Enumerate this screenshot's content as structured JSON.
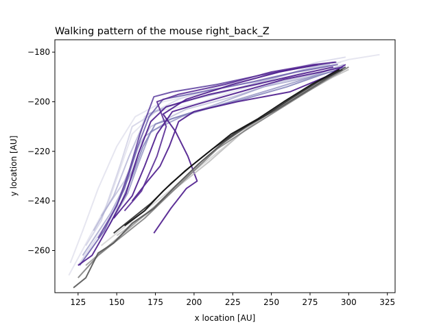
{
  "chart_data": {
    "type": "line",
    "title": "Walking pattern of the mouse right_back_Z",
    "xlabel": "x location [AU]",
    "ylabel": "y location [AU]",
    "xlim": [
      110,
      330
    ],
    "ylim": [
      -277,
      -175
    ],
    "xticks": [
      125,
      150,
      175,
      200,
      225,
      250,
      275,
      300,
      325
    ],
    "yticks": [
      -260,
      -240,
      -220,
      -200,
      -180
    ],
    "grid": false,
    "legend": "none",
    "series": [
      {
        "color": "#dcdcea",
        "opacity": 0.7,
        "points": [
          [
            120,
            -265
          ],
          [
            128,
            -252
          ],
          [
            138,
            -235
          ],
          [
            150,
            -218
          ],
          [
            162,
            -206
          ],
          [
            180,
            -200
          ],
          [
            210,
            -196
          ],
          [
            250,
            -190
          ],
          [
            285,
            -186
          ],
          [
            295,
            -184
          ]
        ]
      },
      {
        "color": "#dcdcea",
        "opacity": 0.7,
        "points": [
          [
            119,
            -270
          ],
          [
            145,
            -240
          ],
          [
            160,
            -213
          ],
          [
            175,
            -204
          ],
          [
            200,
            -201
          ],
          [
            230,
            -195
          ],
          [
            260,
            -190
          ],
          [
            300,
            -183
          ],
          [
            320,
            -181
          ]
        ]
      },
      {
        "color": "#c8c8e0",
        "opacity": 0.7,
        "points": [
          [
            130,
            -258
          ],
          [
            140,
            -248
          ],
          [
            152,
            -226
          ],
          [
            160,
            -210
          ],
          [
            178,
            -203
          ],
          [
            205,
            -198
          ],
          [
            240,
            -193
          ],
          [
            270,
            -187
          ],
          [
            290,
            -184
          ]
        ]
      },
      {
        "color": "#d0d0e6",
        "opacity": 0.7,
        "points": [
          [
            125,
            -266
          ],
          [
            150,
            -243
          ],
          [
            162,
            -222
          ],
          [
            168,
            -206
          ],
          [
            190,
            -199
          ],
          [
            215,
            -194
          ],
          [
            250,
            -189
          ],
          [
            280,
            -184
          ],
          [
            298,
            -182
          ]
        ]
      },
      {
        "color": "#b4b4d4",
        "opacity": 0.7,
        "points": [
          [
            140,
            -246
          ],
          [
            155,
            -232
          ],
          [
            165,
            -217
          ],
          [
            172,
            -210
          ],
          [
            195,
            -203
          ],
          [
            225,
            -198
          ],
          [
            255,
            -192
          ],
          [
            278,
            -189
          ],
          [
            292,
            -186
          ]
        ]
      },
      {
        "color": "#a8a8ce",
        "opacity": 0.7,
        "points": [
          [
            135,
            -252
          ],
          [
            148,
            -238
          ],
          [
            158,
            -222
          ],
          [
            170,
            -205
          ],
          [
            192,
            -200
          ],
          [
            220,
            -196
          ],
          [
            248,
            -191
          ],
          [
            272,
            -187
          ],
          [
            288,
            -185
          ]
        ]
      },
      {
        "color": "#9c9cc8",
        "opacity": 0.75,
        "points": [
          [
            128,
            -262
          ],
          [
            146,
            -245
          ],
          [
            160,
            -228
          ],
          [
            168,
            -214
          ],
          [
            185,
            -207
          ],
          [
            210,
            -202
          ],
          [
            245,
            -194
          ],
          [
            275,
            -190
          ],
          [
            297,
            -185
          ]
        ]
      },
      {
        "color": "#8a8abe",
        "opacity": 0.75,
        "points": [
          [
            145,
            -250
          ],
          [
            157,
            -237
          ],
          [
            164,
            -225
          ],
          [
            172,
            -212
          ],
          [
            192,
            -206
          ],
          [
            218,
            -201
          ],
          [
            250,
            -195
          ],
          [
            276,
            -190
          ],
          [
            294,
            -187
          ]
        ]
      },
      {
        "color": "#7a7ab6",
        "opacity": 0.8,
        "points": [
          [
            152,
            -242
          ],
          [
            160,
            -230
          ],
          [
            167,
            -218
          ],
          [
            175,
            -209
          ],
          [
            200,
            -204
          ],
          [
            232,
            -199
          ],
          [
            260,
            -194
          ],
          [
            283,
            -189
          ],
          [
            298,
            -186
          ]
        ]
      },
      {
        "color": "#6a5cac",
        "opacity": 0.85,
        "points": [
          [
            126,
            -266
          ],
          [
            142,
            -252
          ],
          [
            155,
            -235
          ],
          [
            163,
            -219
          ],
          [
            171,
            -206
          ],
          [
            180,
            -199
          ],
          [
            205,
            -196
          ],
          [
            238,
            -192
          ],
          [
            266,
            -188
          ],
          [
            293,
            -185
          ]
        ]
      },
      {
        "color": "#5a3c9e",
        "opacity": 0.85,
        "points": [
          [
            138,
            -255
          ],
          [
            150,
            -242
          ],
          [
            158,
            -228
          ],
          [
            165,
            -213
          ],
          [
            174,
            -198
          ],
          [
            186,
            -196
          ],
          [
            215,
            -193
          ],
          [
            245,
            -189
          ],
          [
            272,
            -186
          ],
          [
            291,
            -184
          ]
        ]
      },
      {
        "color": "#4b1a8c",
        "opacity": 0.9,
        "points": [
          [
            125,
            -266
          ],
          [
            134,
            -262
          ],
          [
            145,
            -250
          ],
          [
            156,
            -237
          ],
          [
            164,
            -221
          ],
          [
            172,
            -208
          ],
          [
            182,
            -202
          ],
          [
            210,
            -197
          ],
          [
            240,
            -193
          ],
          [
            268,
            -189
          ],
          [
            290,
            -186
          ]
        ]
      },
      {
        "color": "#4b1a8c",
        "opacity": 0.9,
        "points": [
          [
            148,
            -247
          ],
          [
            160,
            -238
          ],
          [
            168,
            -226
          ],
          [
            176,
            -213
          ],
          [
            186,
            -204
          ],
          [
            202,
            -201
          ],
          [
            230,
            -196
          ],
          [
            258,
            -191
          ],
          [
            282,
            -188
          ],
          [
            296,
            -186
          ]
        ]
      },
      {
        "color": "#4b1a8c",
        "opacity": 0.9,
        "points": [
          [
            174,
            -253
          ],
          [
            185,
            -243
          ],
          [
            195,
            -235
          ],
          [
            202,
            -232
          ],
          [
            196,
            -222
          ],
          [
            188,
            -212
          ],
          [
            180,
            -205
          ],
          [
            195,
            -199
          ],
          [
            225,
            -193
          ],
          [
            255,
            -188
          ],
          [
            280,
            -185
          ]
        ]
      },
      {
        "color": "#4b1a8c",
        "opacity": 0.9,
        "points": [
          [
            160,
            -240
          ],
          [
            170,
            -232
          ],
          [
            178,
            -226
          ],
          [
            184,
            -218
          ],
          [
            190,
            -208
          ],
          [
            200,
            -204
          ],
          [
            228,
            -200
          ],
          [
            262,
            -196
          ],
          [
            285,
            -190
          ],
          [
            298,
            -185
          ]
        ]
      },
      {
        "color": "#5a2c96",
        "opacity": 0.9,
        "points": [
          [
            155,
            -244
          ],
          [
            166,
            -236
          ],
          [
            176,
            -222
          ],
          [
            182,
            -210
          ],
          [
            176,
            -200
          ],
          [
            190,
            -197
          ],
          [
            220,
            -193
          ],
          [
            250,
            -188
          ],
          [
            277,
            -185
          ],
          [
            292,
            -184
          ]
        ]
      },
      {
        "color": "#d0d0d0",
        "opacity": 0.8,
        "points": [
          [
            140,
            -258
          ],
          [
            160,
            -248
          ],
          [
            180,
            -238
          ],
          [
            200,
            -228
          ],
          [
            220,
            -218
          ],
          [
            240,
            -208
          ],
          [
            260,
            -200
          ],
          [
            280,
            -193
          ],
          [
            295,
            -188
          ]
        ]
      },
      {
        "color": "#b8b8b8",
        "opacity": 0.8,
        "points": [
          [
            150,
            -254
          ],
          [
            170,
            -245
          ],
          [
            190,
            -234
          ],
          [
            210,
            -224
          ],
          [
            230,
            -213
          ],
          [
            250,
            -204
          ],
          [
            270,
            -197
          ],
          [
            290,
            -190
          ],
          [
            300,
            -187
          ]
        ]
      },
      {
        "color": "#9a9a9a",
        "opacity": 0.85,
        "points": [
          [
            130,
            -266
          ],
          [
            145,
            -258
          ],
          [
            160,
            -250
          ],
          [
            175,
            -242
          ],
          [
            190,
            -233
          ],
          [
            205,
            -224
          ],
          [
            222,
            -215
          ],
          [
            240,
            -208
          ],
          [
            258,
            -201
          ],
          [
            276,
            -194
          ],
          [
            293,
            -188
          ]
        ]
      },
      {
        "color": "#7a7a7a",
        "opacity": 0.85,
        "points": [
          [
            125,
            -271
          ],
          [
            138,
            -262
          ],
          [
            152,
            -255
          ],
          [
            168,
            -247
          ],
          [
            183,
            -238
          ],
          [
            198,
            -229
          ],
          [
            215,
            -219
          ],
          [
            232,
            -212
          ],
          [
            250,
            -205
          ],
          [
            268,
            -198
          ],
          [
            286,
            -191
          ],
          [
            300,
            -186
          ]
        ]
      },
      {
        "color": "#555555",
        "opacity": 0.9,
        "points": [
          [
            122,
            -275
          ],
          [
            130,
            -271
          ],
          [
            138,
            -261
          ],
          [
            148,
            -257
          ],
          [
            160,
            -249
          ],
          [
            174,
            -243
          ],
          [
            188,
            -234
          ],
          [
            203,
            -225
          ],
          [
            218,
            -217
          ],
          [
            236,
            -209
          ],
          [
            254,
            -203
          ],
          [
            272,
            -196
          ],
          [
            290,
            -189
          ],
          [
            298,
            -186
          ]
        ]
      },
      {
        "color": "#2e2e2e",
        "opacity": 0.9,
        "points": [
          [
            148,
            -253
          ],
          [
            160,
            -247
          ],
          [
            172,
            -241
          ],
          [
            185,
            -233
          ],
          [
            198,
            -226
          ],
          [
            212,
            -219
          ],
          [
            228,
            -212
          ],
          [
            245,
            -206
          ],
          [
            262,
            -199
          ],
          [
            280,
            -192
          ],
          [
            296,
            -187
          ]
        ]
      },
      {
        "color": "#111111",
        "opacity": 0.95,
        "points": [
          [
            155,
            -250
          ],
          [
            168,
            -244
          ],
          [
            180,
            -236
          ],
          [
            194,
            -228
          ],
          [
            208,
            -221
          ],
          [
            224,
            -213
          ],
          [
            241,
            -207
          ],
          [
            258,
            -200
          ],
          [
            276,
            -193
          ],
          [
            294,
            -187
          ]
        ]
      }
    ]
  }
}
